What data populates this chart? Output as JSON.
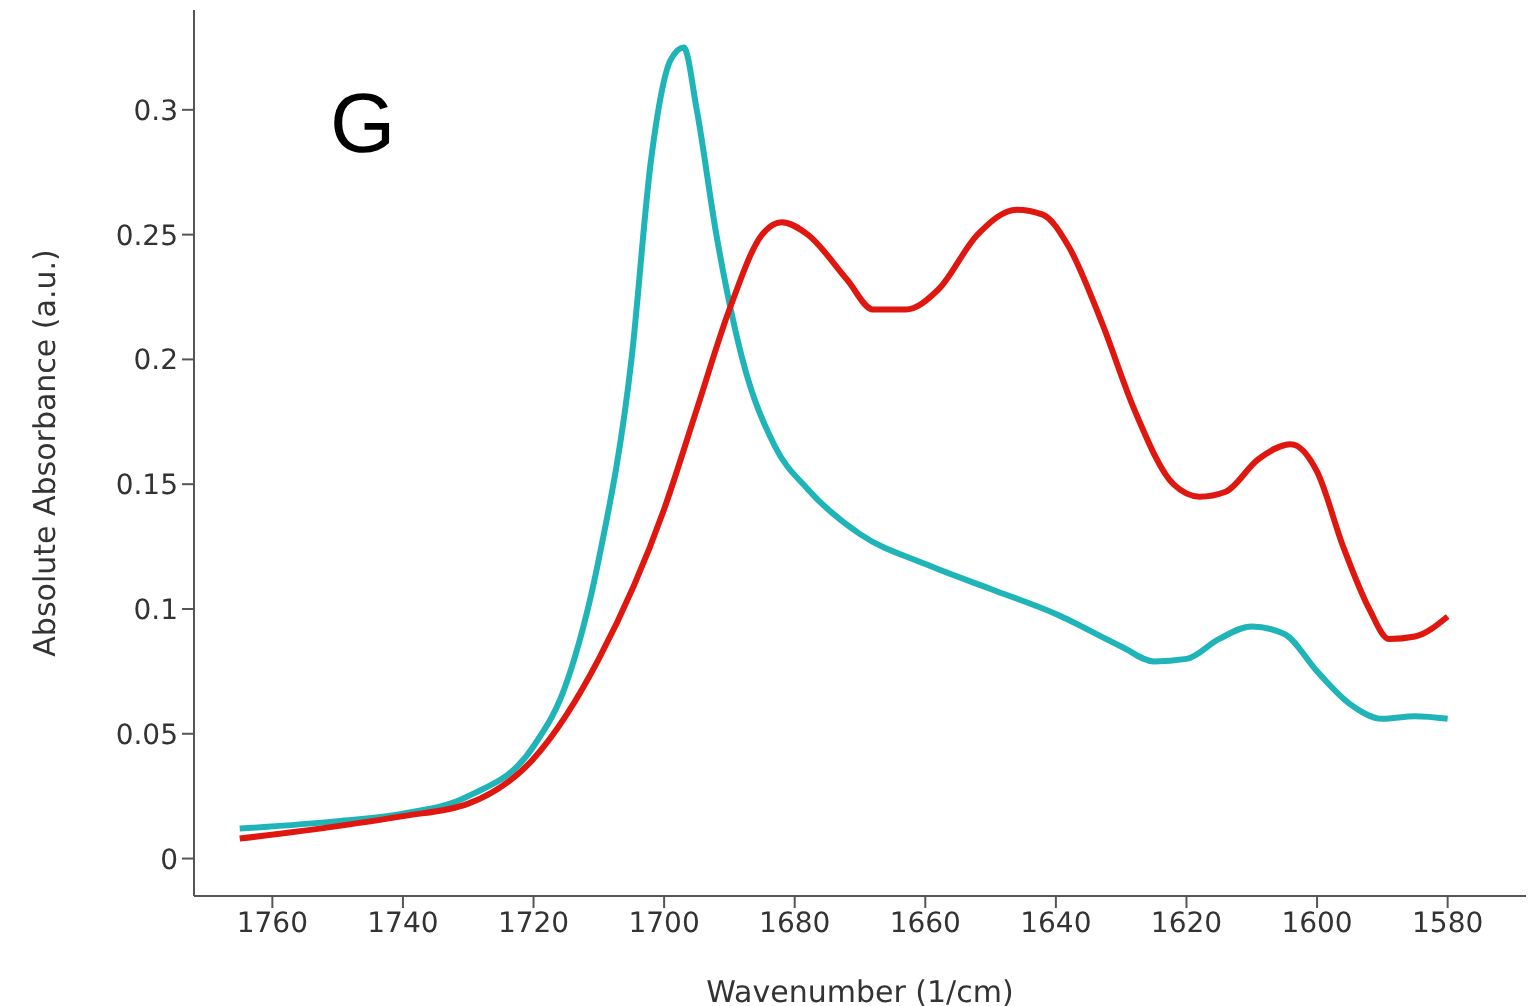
{
  "chart_data": {
    "type": "line",
    "xlabel": "Wavenumber (1/cm)",
    "ylabel": "Absolute Absorbance (a.u.)",
    "annotations": [
      "G"
    ],
    "xlim": [
      1772,
      1568
    ],
    "xticks": [
      1760,
      1740,
      1720,
      1700,
      1680,
      1660,
      1640,
      1620,
      1600,
      1580
    ],
    "ylim": [
      -0.015,
      0.34
    ],
    "yticks": [
      0,
      0.05,
      0.1,
      0.15,
      0.2,
      0.25,
      0.3
    ],
    "grid": false,
    "marker": "none",
    "line_style": "solid",
    "series": [
      {
        "color": "#1fb5b8",
        "x": [
          1765,
          1750,
          1740,
          1730,
          1720,
          1715,
          1710,
          1705,
          1702,
          1699,
          1697,
          1695,
          1692,
          1688,
          1683,
          1678,
          1670,
          1660,
          1650,
          1640,
          1630,
          1625,
          1620,
          1615,
          1610,
          1605,
          1600,
          1595,
          1590,
          1585,
          1580
        ],
        "values": [
          0.012,
          0.015,
          0.018,
          0.025,
          0.045,
          0.07,
          0.12,
          0.2,
          0.28,
          0.32,
          0.325,
          0.3,
          0.25,
          0.2,
          0.165,
          0.148,
          0.13,
          0.118,
          0.108,
          0.098,
          0.085,
          0.079,
          0.08,
          0.088,
          0.093,
          0.09,
          0.075,
          0.062,
          0.056,
          0.057,
          0.056
        ]
      },
      {
        "color": "#e0170f",
        "x": [
          1765,
          1750,
          1740,
          1730,
          1720,
          1710,
          1700,
          1695,
          1690,
          1685,
          1682,
          1678,
          1672,
          1668,
          1663,
          1658,
          1652,
          1646,
          1642,
          1638,
          1633,
          1628,
          1622,
          1618,
          1614,
          1609,
          1604,
          1600,
          1596,
          1592,
          1589,
          1585,
          1580
        ],
        "values": [
          0.008,
          0.013,
          0.017,
          0.022,
          0.04,
          0.08,
          0.14,
          0.18,
          0.22,
          0.25,
          0.255,
          0.25,
          0.232,
          0.22,
          0.22,
          0.228,
          0.25,
          0.26,
          0.258,
          0.245,
          0.215,
          0.18,
          0.15,
          0.145,
          0.147,
          0.16,
          0.166,
          0.155,
          0.125,
          0.1,
          0.088,
          0.089,
          0.097
        ]
      }
    ]
  }
}
